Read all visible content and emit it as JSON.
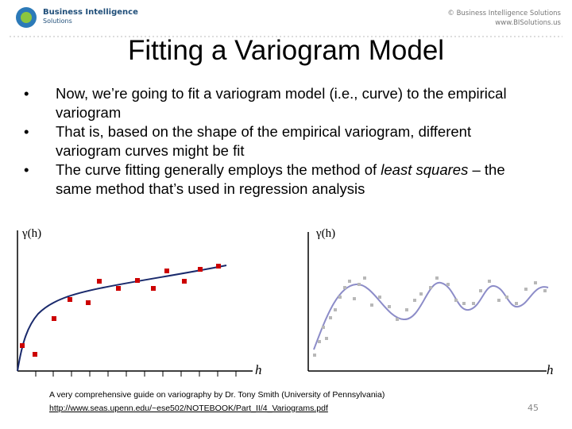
{
  "header": {
    "logo_name": "Business Intelligence",
    "logo_sub": "Solutions",
    "copyright": "© Business Intelligence Solutions",
    "url": "www.BISolutions.us"
  },
  "title": "Fitting a Variogram Model",
  "bullets": [
    [
      "Now, we’re going to fit a variogram model (i.e., curve) to the empirical variogram"
    ],
    [
      "That is, based on the shape of the empirical variogram, different variogram curves might be fit"
    ],
    [
      "The curve fitting generally employs the method of ",
      "least squares",
      " – the same method that’s used in regression analysis"
    ]
  ],
  "figures": [
    {
      "y_label": "γ(h)",
      "x_label": "h"
    },
    {
      "y_label": "γ(h)",
      "x_label": "h"
    }
  ],
  "footer": {
    "citation": "A very comprehensive  guide on variography by Dr. Tony Smith (University of Pennsylvania)",
    "link": "http://www.seas.upenn.edu/~ese502/NOTEBOOK/Part_II/4_Variograms.pdf"
  },
  "page_number": 45
}
